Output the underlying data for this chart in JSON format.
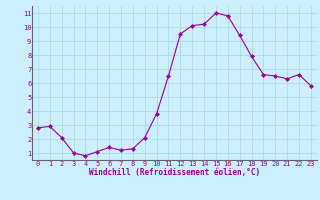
{
  "x": [
    0,
    1,
    2,
    3,
    4,
    5,
    6,
    7,
    8,
    9,
    10,
    11,
    12,
    13,
    14,
    15,
    16,
    17,
    18,
    19,
    20,
    21,
    22,
    23
  ],
  "y": [
    2.8,
    2.9,
    2.1,
    1.0,
    0.8,
    1.1,
    1.4,
    1.2,
    1.3,
    2.1,
    3.8,
    6.5,
    9.5,
    10.1,
    10.2,
    11.0,
    10.8,
    9.4,
    7.9,
    6.6,
    6.5,
    6.3,
    6.6,
    5.8
  ],
  "line_color": "#990099",
  "marker": "D",
  "marker_size": 2.0,
  "bg_color": "#cceeff",
  "grid_color": "#aadddd",
  "xlabel": "Windchill (Refroidissement éolien,°C)",
  "xlabel_color": "#990099",
  "tick_color": "#990099",
  "ylim": [
    0.5,
    11.5
  ],
  "xlim": [
    -0.5,
    23.5
  ],
  "yticks": [
    1,
    2,
    3,
    4,
    5,
    6,
    7,
    8,
    9,
    10,
    11
  ],
  "xticks": [
    0,
    1,
    2,
    3,
    4,
    5,
    6,
    7,
    8,
    9,
    10,
    11,
    12,
    13,
    14,
    15,
    16,
    17,
    18,
    19,
    20,
    21,
    22,
    23
  ],
  "tick_fontsize": 5.0,
  "xlabel_fontsize": 5.5
}
